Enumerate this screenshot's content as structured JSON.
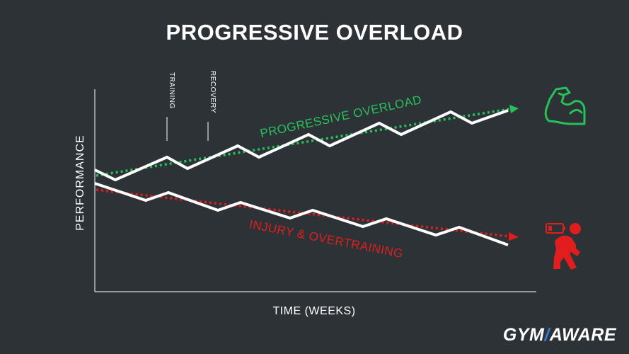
{
  "title": "PROGRESSIVE OVERLOAD",
  "axes": {
    "y_label": "PERFORMANCE",
    "x_label": "TIME (WEEKS)"
  },
  "phase_labels": {
    "training": "TRAINING",
    "recovery": "RECOVERY"
  },
  "trend_labels": {
    "progressive": "PROGRESSIVE OVERLOAD",
    "injury": "INJURY & OVERTRAINING"
  },
  "colors": {
    "background": "#2d3236",
    "performance_line": "#ffffff",
    "progressive": "#27c15a",
    "injury": "#e11d1d",
    "logo_accent": "#2f7fd6"
  },
  "icons": {
    "progressive": "flexed-bicep-icon",
    "injury": "low-battery-tired-person-icon"
  },
  "logo": {
    "left": "GYM",
    "slash": "/",
    "right": "AWARE"
  }
}
